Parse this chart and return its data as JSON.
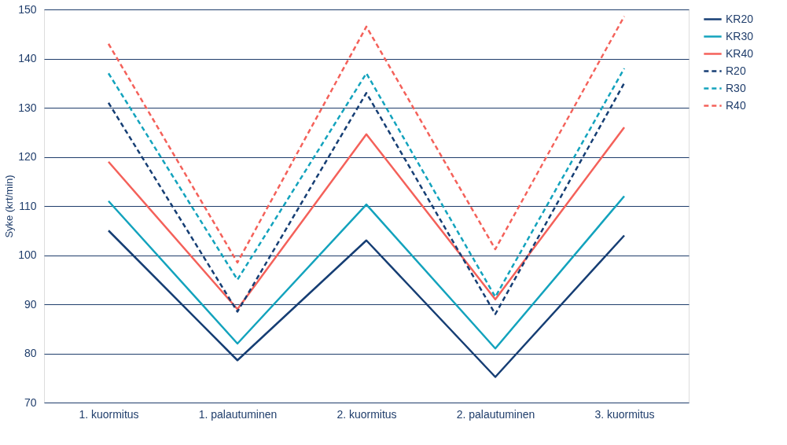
{
  "chart_data": {
    "type": "line",
    "ylabel": "Syke (krt/min)",
    "categories": [
      "1. kuormitus",
      "1. palautuminen",
      "2. kuormitus",
      "2. palautuminen",
      "3. kuormitus"
    ],
    "ylim": [
      70,
      150
    ],
    "yticks": [
      70,
      80,
      90,
      100,
      110,
      120,
      130,
      140,
      150
    ],
    "grid": "y",
    "legend": "right",
    "marker": "none",
    "series": [
      {
        "name": "KR20",
        "color": "#163e74",
        "line_style": "solid",
        "values": [
          105,
          78.6,
          103,
          75.2,
          104
        ]
      },
      {
        "name": "KR30",
        "color": "#13a3bd",
        "line_style": "solid",
        "values": [
          111,
          82,
          110.3,
          81,
          112
        ]
      },
      {
        "name": "KR40",
        "color": "#f4615a",
        "line_style": "solid",
        "values": [
          119,
          89,
          124.6,
          91,
          126
        ]
      },
      {
        "name": "R20",
        "color": "#163e74",
        "line_style": "dashed",
        "values": [
          131,
          88.5,
          133,
          88,
          135
        ]
      },
      {
        "name": "R30",
        "color": "#13a3bd",
        "line_style": "dashed",
        "values": [
          137,
          95,
          137,
          91.5,
          138
        ]
      },
      {
        "name": "R40",
        "color": "#f4615a",
        "line_style": "dashed",
        "values": [
          143,
          98.5,
          146.5,
          101.2,
          148.6
        ]
      }
    ]
  }
}
